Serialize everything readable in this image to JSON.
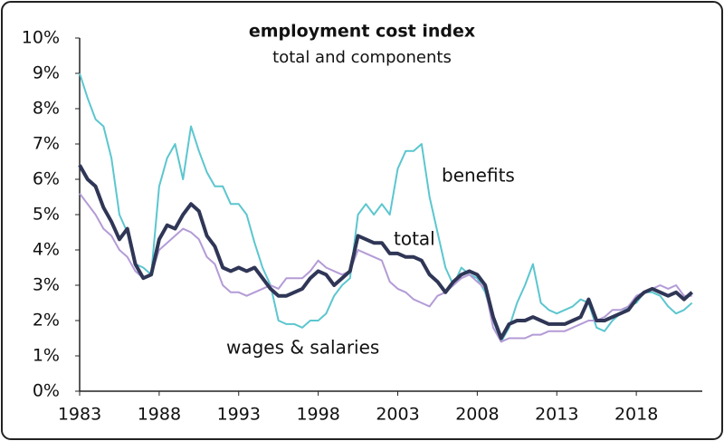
{
  "chart_data": {
    "type": "line",
    "title": "employment cost index",
    "subtitle": "total and components",
    "annotations": [
      "benefits",
      "total",
      "wages & salaries"
    ],
    "x": [
      1983,
      1983.5,
      1984,
      1984.5,
      1985,
      1985.5,
      1986,
      1986.5,
      1987,
      1987.5,
      1988,
      1988.5,
      1989,
      1989.5,
      1990,
      1990.5,
      1991,
      1991.5,
      1992,
      1992.5,
      1993,
      1993.5,
      1994,
      1994.5,
      1995,
      1995.5,
      1996,
      1996.5,
      1997,
      1997.5,
      1998,
      1998.5,
      1999,
      1999.5,
      2000,
      2000.5,
      2001,
      2001.5,
      2002,
      2002.5,
      2003,
      2003.5,
      2004,
      2004.5,
      2005,
      2005.5,
      2006,
      2006.5,
      2007,
      2007.5,
      2008,
      2008.5,
      2009,
      2009.5,
      2010,
      2010.5,
      2011,
      2011.5,
      2012,
      2012.5,
      2013,
      2013.5,
      2014,
      2014.5,
      2015,
      2015.5,
      2016,
      2016.5,
      2017,
      2017.5,
      2018,
      2018.5,
      2019,
      2019.5,
      2020,
      2020.5,
      2021,
      2021.5
    ],
    "series": [
      {
        "name": "benefits",
        "color": "#5cc6cf",
        "width": 2,
        "values": [
          9.0,
          8.3,
          7.7,
          7.5,
          6.6,
          5.0,
          4.5,
          3.6,
          3.5,
          3.3,
          5.8,
          6.6,
          7.0,
          6.0,
          7.5,
          6.8,
          6.2,
          5.8,
          5.8,
          5.3,
          5.3,
          5.0,
          4.2,
          3.5,
          3.0,
          2.0,
          1.9,
          1.9,
          1.8,
          2.0,
          2.0,
          2.2,
          2.7,
          3.0,
          3.2,
          5.0,
          5.3,
          5.0,
          5.3,
          5.0,
          6.3,
          6.8,
          6.8,
          7.0,
          5.5,
          4.5,
          3.5,
          3.0,
          3.5,
          3.3,
          3.2,
          2.8,
          2.0,
          1.4,
          1.8,
          2.5,
          3.0,
          3.6,
          2.5,
          2.3,
          2.2,
          2.3,
          2.4,
          2.6,
          2.5,
          1.8,
          1.7,
          2.0,
          2.2,
          2.4,
          2.5,
          2.8,
          2.8,
          2.7,
          2.4,
          2.2,
          2.3,
          2.5
        ]
      },
      {
        "name": "wages & salaries",
        "color": "#b39bd6",
        "width": 2,
        "values": [
          5.6,
          5.3,
          5.0,
          4.6,
          4.4,
          4.0,
          3.8,
          3.4,
          3.2,
          3.3,
          4.0,
          4.2,
          4.4,
          4.6,
          4.5,
          4.3,
          3.8,
          3.6,
          3.0,
          2.8,
          2.8,
          2.7,
          2.8,
          2.9,
          3.0,
          2.9,
          3.2,
          3.2,
          3.2,
          3.4,
          3.7,
          3.5,
          3.4,
          3.3,
          3.4,
          4.0,
          3.9,
          3.8,
          3.7,
          3.1,
          2.9,
          2.8,
          2.6,
          2.5,
          2.4,
          2.7,
          2.8,
          3.0,
          3.2,
          3.3,
          3.1,
          2.9,
          1.8,
          1.4,
          1.5,
          1.5,
          1.5,
          1.6,
          1.6,
          1.7,
          1.7,
          1.7,
          1.8,
          1.9,
          2.0,
          2.0,
          2.1,
          2.3,
          2.3,
          2.4,
          2.7,
          2.8,
          2.9,
          3.0,
          2.9,
          3.0,
          2.7,
          2.7
        ]
      },
      {
        "name": "total",
        "color": "#2f3656",
        "width": 4,
        "values": [
          6.4,
          6.0,
          5.8,
          5.2,
          4.8,
          4.3,
          4.6,
          3.6,
          3.2,
          3.3,
          4.3,
          4.7,
          4.6,
          5.0,
          5.3,
          5.1,
          4.4,
          4.1,
          3.5,
          3.4,
          3.5,
          3.4,
          3.5,
          3.2,
          2.9,
          2.7,
          2.7,
          2.8,
          2.9,
          3.2,
          3.4,
          3.3,
          3.0,
          3.2,
          3.4,
          4.4,
          4.3,
          4.2,
          4.2,
          3.9,
          3.9,
          3.8,
          3.8,
          3.7,
          3.3,
          3.1,
          2.8,
          3.1,
          3.3,
          3.4,
          3.3,
          3.0,
          2.1,
          1.5,
          1.9,
          2.0,
          2.0,
          2.1,
          2.0,
          1.9,
          1.9,
          1.9,
          2.0,
          2.1,
          2.6,
          2.0,
          2.0,
          2.1,
          2.2,
          2.3,
          2.6,
          2.8,
          2.9,
          2.8,
          2.7,
          2.8,
          2.6,
          2.8
        ]
      }
    ],
    "xlim": [
      1983,
      2023
    ],
    "xticks": [
      1983,
      1988,
      1993,
      1998,
      2003,
      2008,
      2013,
      2018
    ],
    "ylim": [
      0,
      10
    ],
    "yticks": [
      {
        "value": 0,
        "label": "0%"
      },
      {
        "value": 1,
        "label": "1%"
      },
      {
        "value": 2,
        "label": "2%"
      },
      {
        "value": 3,
        "label": "3%"
      },
      {
        "value": 4,
        "label": "4%"
      },
      {
        "value": 5,
        "label": "5%"
      },
      {
        "value": 6,
        "label": "6%"
      },
      {
        "value": 7,
        "label": "7%"
      },
      {
        "value": 8,
        "label": "8%"
      },
      {
        "value": 9,
        "label": "9%"
      },
      {
        "value": 10,
        "label": "10%"
      }
    ],
    "grid": false
  }
}
